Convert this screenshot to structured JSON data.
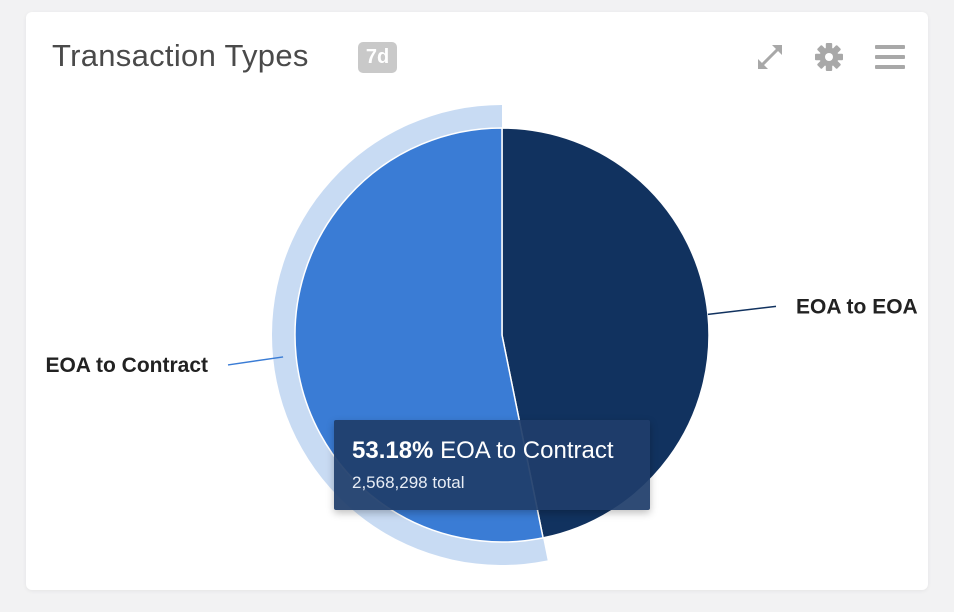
{
  "header": {
    "title": "Transaction Types",
    "badge": "7d"
  },
  "toolbar": {
    "icons": [
      "expand-icon",
      "gear-icon",
      "menu-icon"
    ]
  },
  "chart_data": {
    "type": "pie",
    "title": "Transaction Types",
    "series": [
      {
        "name": "EOA to Contract",
        "percent": 53.18,
        "color": "#3a7cd5",
        "highlighted": true
      },
      {
        "name": "EOA to EOA",
        "percent": 46.82,
        "color": "#11325f",
        "highlighted": false
      }
    ]
  },
  "tooltip": {
    "percent": "53.18%",
    "series_name": "EOA to Contract",
    "total": "2,568,298 total"
  }
}
